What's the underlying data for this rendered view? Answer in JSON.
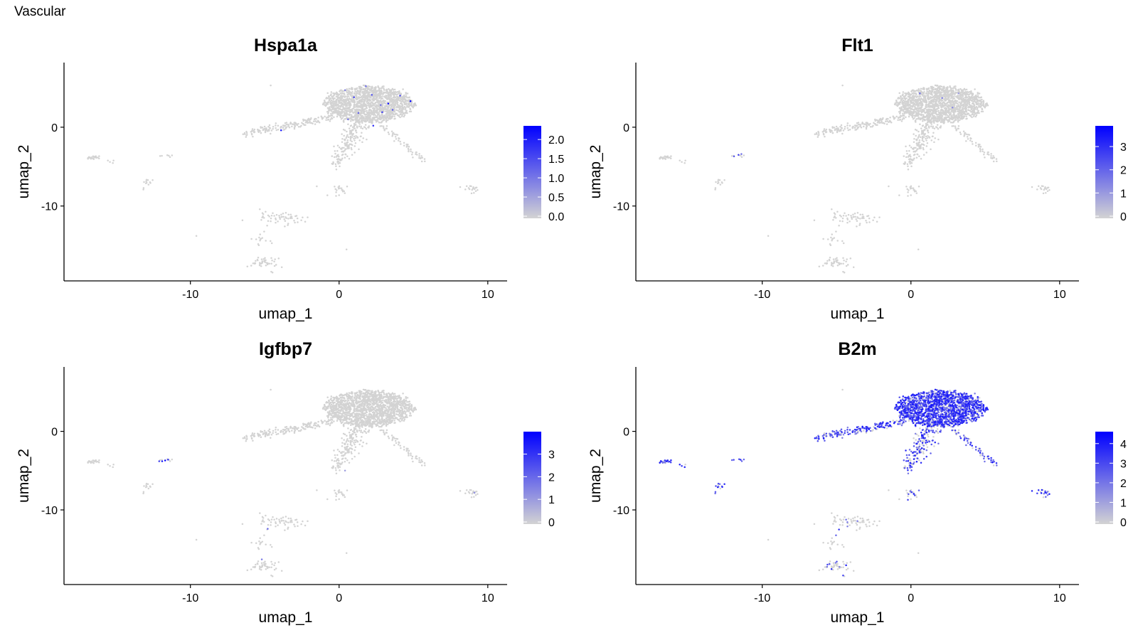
{
  "figure": {
    "title": "Vascular"
  },
  "colors": {
    "low": "#d3d3d3",
    "high": "#0000ff",
    "axis": "#000000"
  },
  "chart_data": [
    {
      "type": "scatter",
      "title": "Hspa1a",
      "xlabel": "umap_1",
      "ylabel": "umap_2",
      "xlim": [
        -18.5,
        11.3
      ],
      "ylim": [
        -19.5,
        8.2
      ],
      "xticks": [
        -10,
        0,
        10
      ],
      "xtick_labels": [
        "-10",
        "0",
        "10"
      ],
      "yticks": [
        0,
        -10
      ],
      "ytick_labels": [
        "0",
        "-10"
      ],
      "legend": {
        "position": "right",
        "min": 0,
        "max": 2.3,
        "ticks": [
          0.0,
          0.5,
          1.0,
          1.5,
          2.0
        ],
        "tick_labels": [
          "0.0",
          "0.5",
          "1.0",
          "1.5",
          "2.0"
        ]
      },
      "expression_profile": "sparse",
      "high_points": [
        [
          1.0,
          3.8,
          1.6
        ],
        [
          2.2,
          4.1,
          1.4
        ],
        [
          3.3,
          3.0,
          2.2
        ],
        [
          4.8,
          3.3,
          2.3
        ],
        [
          1.3,
          1.8,
          1.2
        ],
        [
          2.9,
          1.9,
          1.6
        ],
        [
          3.6,
          2.2,
          1.3
        ],
        [
          2.3,
          0.2,
          1.8
        ],
        [
          0.6,
          1.0,
          1.0
        ],
        [
          -3.9,
          -0.4,
          2.0
        ],
        [
          1.8,
          5.2,
          1.1
        ],
        [
          0.4,
          4.7,
          0.9
        ],
        [
          4.1,
          4.0,
          1.5
        ],
        [
          2.8,
          2.8,
          1.0
        ]
      ]
    },
    {
      "type": "scatter",
      "title": "Flt1",
      "xlabel": "umap_1",
      "ylabel": "umap_2",
      "xlim": [
        -18.5,
        11.3
      ],
      "ylim": [
        -19.5,
        8.2
      ],
      "xticks": [
        -10,
        0,
        10
      ],
      "xtick_labels": [
        "-10",
        "0",
        "10"
      ],
      "yticks": [
        0,
        -10
      ],
      "ytick_labels": [
        "0",
        "-10"
      ],
      "legend": {
        "position": "right",
        "min": 0,
        "max": 3.8,
        "ticks": [
          0,
          1,
          2,
          3
        ],
        "tick_labels": [
          "0",
          "1",
          "2",
          "3"
        ]
      },
      "expression_profile": "sparse",
      "high_points": [
        [
          -11.6,
          -3.5,
          2.6
        ],
        [
          -11.9,
          -3.7,
          2.2
        ],
        [
          -11.4,
          -3.4,
          1.8
        ],
        [
          0.6,
          4.3,
          1.8
        ],
        [
          2.1,
          3.7,
          1.5
        ],
        [
          2.8,
          2.5,
          1.3
        ],
        [
          3.2,
          4.3,
          1.0
        ]
      ]
    },
    {
      "type": "scatter",
      "title": "Igfbp7",
      "xlabel": "umap_1",
      "ylabel": "umap_2",
      "xlim": [
        -18.5,
        11.3
      ],
      "ylim": [
        -19.5,
        8.2
      ],
      "xticks": [
        -10,
        0,
        10
      ],
      "xtick_labels": [
        "-10",
        "0",
        "10"
      ],
      "yticks": [
        0,
        -10
      ],
      "ytick_labels": [
        "0",
        "-10"
      ],
      "legend": {
        "position": "right",
        "min": 0,
        "max": 3.9,
        "ticks": [
          0,
          1,
          2,
          3
        ],
        "tick_labels": [
          "0",
          "1",
          "2",
          "3"
        ]
      },
      "expression_profile": "sparse",
      "high_points": [
        [
          -11.7,
          -3.7,
          3.8
        ],
        [
          -11.9,
          -3.8,
          3.4
        ],
        [
          -11.5,
          -3.6,
          3.0
        ],
        [
          -12.1,
          -3.8,
          2.6
        ],
        [
          -4.8,
          -12.4,
          2.0
        ],
        [
          -5.2,
          -16.3,
          1.6
        ],
        [
          9.1,
          -7.8,
          1.2
        ],
        [
          0.4,
          -5.0,
          1.0
        ]
      ]
    },
    {
      "type": "scatter",
      "title": "B2m",
      "xlabel": "umap_1",
      "ylabel": "umap_2",
      "xlim": [
        -18.5,
        11.3
      ],
      "ylim": [
        -19.5,
        8.2
      ],
      "xticks": [
        -10,
        0,
        10
      ],
      "xtick_labels": [
        "-10",
        "0",
        "10"
      ],
      "yticks": [
        0,
        -10
      ],
      "ytick_labels": [
        "0",
        "-10"
      ],
      "legend": {
        "position": "right",
        "min": 0,
        "max": 4.5,
        "ticks": [
          0,
          1,
          2,
          3,
          4
        ],
        "tick_labels": [
          "0",
          "1",
          "2",
          "3",
          "4"
        ]
      },
      "expression_profile": "broad",
      "high_points": []
    }
  ]
}
